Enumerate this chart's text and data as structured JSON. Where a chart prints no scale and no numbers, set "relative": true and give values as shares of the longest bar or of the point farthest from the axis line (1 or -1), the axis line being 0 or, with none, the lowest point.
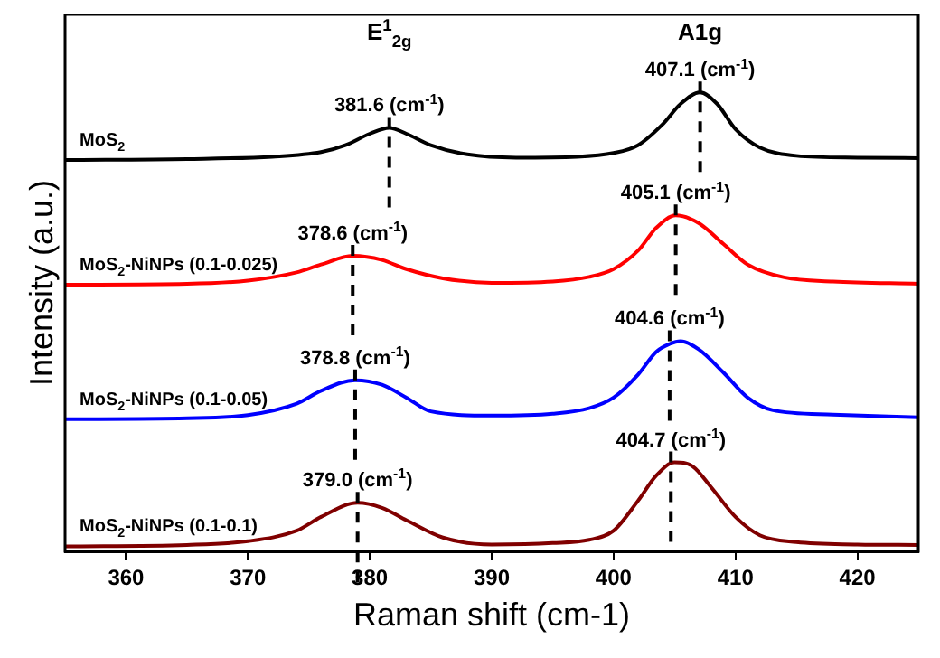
{
  "chart_data": {
    "type": "line",
    "relative": true,
    "xlabel": "Raman shift (cm-1)",
    "ylabel": "Intensity (a.u.)",
    "xlim": [
      355,
      425
    ],
    "xticks": [
      360,
      370,
      380,
      390,
      400,
      410,
      420
    ],
    "grid": false,
    "legend": false,
    "marker": "none",
    "line_style": "solid",
    "series": [
      {
        "name": "MoS$_{2}$",
        "color": "#000000",
        "x": [
          355,
          365,
          372,
          376,
          378,
          380,
          381.6,
          383,
          385,
          388,
          392,
          397,
          400,
          402,
          404,
          405.5,
          407.1,
          408.5,
          410,
          412,
          415,
          420,
          425
        ],
        "values": [
          0.853,
          0.855,
          0.86,
          0.87,
          0.885,
          0.91,
          0.923,
          0.91,
          0.885,
          0.865,
          0.858,
          0.86,
          0.868,
          0.885,
          0.93,
          0.975,
          1.0,
          0.975,
          0.92,
          0.88,
          0.862,
          0.858,
          0.857
        ]
      },
      {
        "name": "MoS$_{2}$-NiNPs (0.1-0.025)",
        "color": "#ff0000",
        "x": [
          355,
          365,
          370,
          374,
          376,
          378.6,
          381,
          383,
          386,
          390,
          395,
          398,
          400,
          402,
          403.5,
          405.1,
          407,
          409,
          411,
          414,
          418,
          425
        ],
        "values": [
          0.581,
          0.583,
          0.59,
          0.608,
          0.625,
          0.644,
          0.635,
          0.615,
          0.595,
          0.585,
          0.588,
          0.598,
          0.615,
          0.655,
          0.705,
          0.732,
          0.715,
          0.67,
          0.625,
          0.597,
          0.588,
          0.583
        ]
      },
      {
        "name": "MoS$_{2}$-NiNPs (0.1-0.05)",
        "color": "#0000ff",
        "x": [
          355,
          365,
          370,
          374,
          376,
          378.8,
          381,
          383,
          385,
          390,
          395,
          398,
          400,
          402,
          403.5,
          404.6,
          405.5,
          407,
          409,
          411,
          413,
          418,
          425
        ],
        "values": [
          0.288,
          0.29,
          0.297,
          0.322,
          0.35,
          0.373,
          0.363,
          0.335,
          0.305,
          0.296,
          0.3,
          0.312,
          0.335,
          0.385,
          0.435,
          0.452,
          0.458,
          0.44,
          0.39,
          0.335,
          0.308,
          0.298,
          0.292
        ]
      },
      {
        "name": "MoS$_{2}$-NiNPs (0.1-0.1)",
        "color": "#800000",
        "x": [
          355,
          365,
          370,
          374,
          376,
          379,
          381,
          383,
          386,
          390,
          395,
          398,
          400,
          402,
          403.5,
          405,
          406.5,
          408,
          410,
          412,
          415,
          420,
          425
        ],
        "values": [
          0.011,
          0.014,
          0.022,
          0.045,
          0.075,
          0.106,
          0.095,
          0.068,
          0.03,
          0.015,
          0.018,
          0.025,
          0.045,
          0.11,
          0.165,
          0.194,
          0.185,
          0.14,
          0.075,
          0.035,
          0.02,
          0.015,
          0.014
        ]
      }
    ],
    "annotations": [
      "E$^{1}$$_{2g}$",
      "A1g",
      {
        "text": "381.6 (cm$^{-1}$)",
        "x": 381.6,
        "y": 0.923
      },
      {
        "text": "407.1 (cm$^{-1}$)",
        "x": 407.1,
        "y": 1.0
      },
      {
        "text": "378.6 (cm$^{-1}$)",
        "x": 378.6,
        "y": 0.644
      },
      {
        "text": "405.1 (cm$^{-1}$)",
        "x": 405.1,
        "y": 0.732
      },
      {
        "text": "378.8 (cm$^{-1}$)",
        "x": 378.8,
        "y": 0.373
      },
      {
        "text": "404.6 (cm$^{-1}$)",
        "x": 404.6,
        "y": 0.458
      },
      {
        "text": "379.0 (cm$^{-1}$)",
        "x": 379.0,
        "y": 0.106
      },
      {
        "text": "404.7 (cm$^{-1}$)",
        "x": 404.7,
        "y": 0.194
      }
    ]
  }
}
